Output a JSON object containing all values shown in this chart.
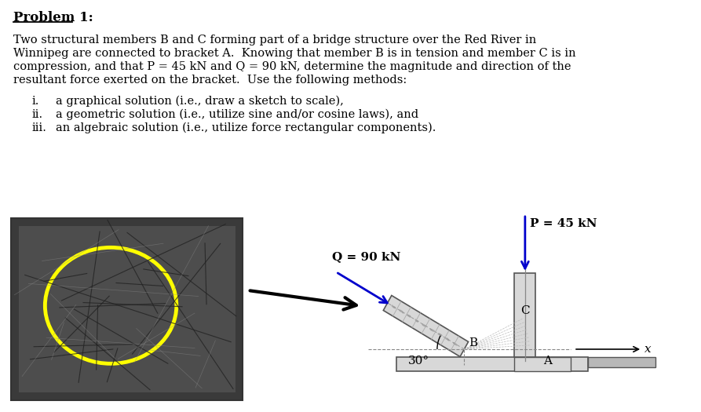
{
  "background_color": "#ffffff",
  "problem_title": "Problem 1:",
  "body_lines": [
    "Two structural members B and C forming part of a bridge structure over the Red River in",
    "Winnipeg are connected to bracket A.  Knowing that member B is in tension and member C is in",
    "compression, and that P = 45 kN and Q = 90 kN, determine the magnitude and direction of the",
    "resultant force exerted on the bracket.  Use the following methods:"
  ],
  "list_labels": [
    "i.",
    "ii.",
    "iii."
  ],
  "list_items": [
    "a graphical solution (i.e., draw a sketch to scale),",
    "a geometric solution (i.e., utilize sine and/or cosine laws), and",
    "an algebraic solution (i.e., utilize force rectangular components)."
  ],
  "P_label": "P = 45 kN",
  "Q_label": "Q = 90 kN",
  "angle_label": "30°",
  "label_B": "B",
  "label_C": "C",
  "label_A": "A",
  "label_x": "x",
  "blue": "#0000cc",
  "black": "#000000",
  "gray_light": "#d8d8d8",
  "gray_mid": "#aaaaaa",
  "gray_dark": "#555555",
  "yellow": "#ffff00",
  "photo_dark": "#3a3a3a",
  "photo_mid": "#606060"
}
